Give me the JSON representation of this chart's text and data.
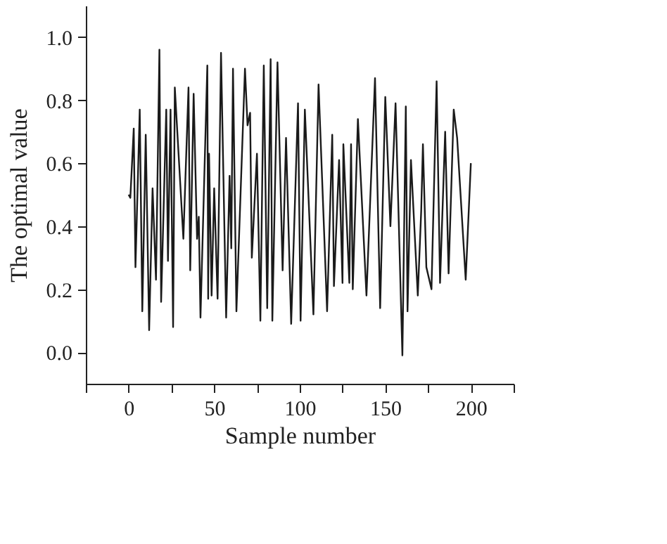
{
  "chart_data": {
    "type": "line",
    "xlabel": "Sample number",
    "ylabel": "The optimal value",
    "xlim": [
      -25,
      225
    ],
    "xticks": [
      {
        "value": -25,
        "label": null
      },
      0,
      {
        "value": 25,
        "label": null
      },
      50,
      {
        "value": 75,
        "label": null
      },
      100,
      {
        "value": 125,
        "label": null
      },
      150,
      {
        "value": 175,
        "label": null
      },
      200,
      {
        "value": 225,
        "label": null
      }
    ],
    "ylim": [
      -0.1,
      1.1
    ],
    "yticks": [
      {
        "value": 0,
        "label": "0.0"
      },
      {
        "value": 0.2,
        "label": "0.2"
      },
      {
        "value": 0.4,
        "label": "0.4"
      },
      {
        "value": 0.6,
        "label": "0.6"
      },
      {
        "value": 0.8,
        "label": "0.8"
      },
      {
        "value": 1,
        "label": "1.0"
      }
    ],
    "grid": false,
    "marker": "none",
    "line_style": "solid",
    "x": [
      0,
      1,
      3,
      4,
      6.5,
      8,
      10,
      12,
      14,
      16,
      18,
      19,
      22,
      23,
      24.5,
      26,
      27,
      32,
      35,
      36,
      38,
      40,
      41,
      42,
      46,
      46.5,
      47,
      48.5,
      50,
      52,
      54,
      57,
      59,
      60,
      61,
      63,
      68,
      69.5,
      71,
      72,
      75,
      77,
      79,
      81,
      83,
      84,
      87,
      90,
      92,
      95,
      99,
      100.5,
      103,
      108,
      111,
      116,
      119,
      120,
      123,
      125,
      125.5,
      129,
      130,
      131,
      134,
      139,
      144,
      147,
      150,
      153,
      156,
      160,
      162,
      163,
      165,
      169,
      171,
      172,
      174,
      177,
      180,
      182,
      185,
      187,
      190,
      192,
      197,
      200
    ],
    "series": [
      {
        "color": "#1a1a1a",
        "values": [
          0.5,
          0.49,
          0.71,
          0.27,
          0.77,
          0.13,
          0.69,
          0.07,
          0.52,
          0.23,
          0.96,
          0.16,
          0.77,
          0.29,
          0.77,
          0.08,
          0.84,
          0.36,
          0.84,
          0.26,
          0.82,
          0.36,
          0.43,
          0.11,
          0.91,
          0.17,
          0.63,
          0.18,
          0.52,
          0.17,
          0.95,
          0.11,
          0.56,
          0.33,
          0.9,
          0.13,
          0.9,
          0.72,
          0.76,
          0.3,
          0.63,
          0.1,
          0.91,
          0.14,
          0.93,
          0.1,
          0.92,
          0.26,
          0.68,
          0.09,
          0.79,
          0.1,
          0.77,
          0.12,
          0.85,
          0.13,
          0.69,
          0.21,
          0.61,
          0.22,
          0.66,
          0.22,
          0.66,
          0.2,
          0.74,
          0.18,
          0.87,
          0.14,
          0.81,
          0.4,
          0.79,
          -0.01,
          0.78,
          0.13,
          0.61,
          0.18,
          0.45,
          0.66,
          0.27,
          0.2,
          0.86,
          0.22,
          0.7,
          0.25,
          0.77,
          0.68,
          0.23,
          0.6
        ]
      }
    ]
  }
}
